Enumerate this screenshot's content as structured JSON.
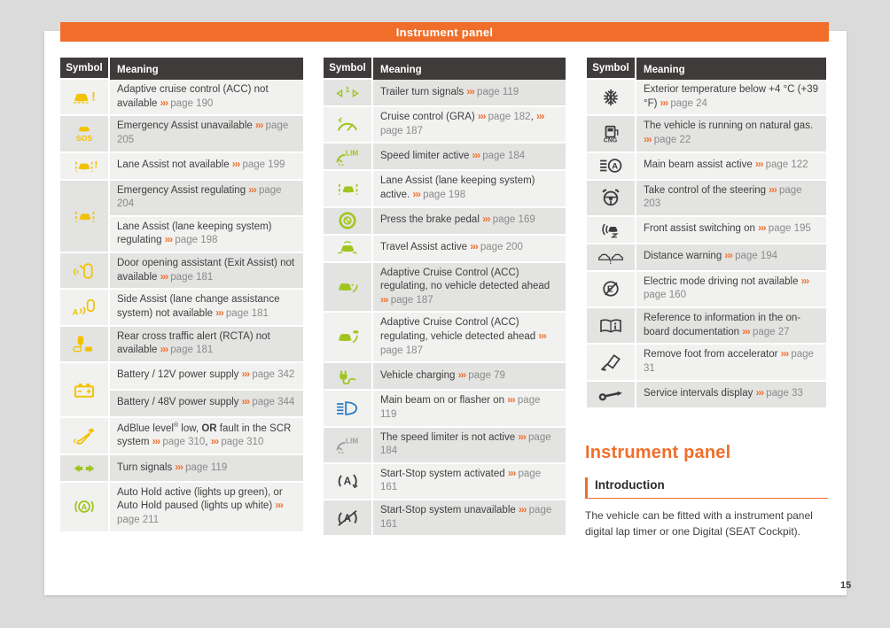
{
  "banner": {
    "title": "Instrument panel"
  },
  "table_header": {
    "symbol": "Symbol",
    "meaning": "Meaning"
  },
  "page": {
    "number": "15"
  },
  "section": {
    "heading": "Instrument panel",
    "subheading": "Introduction",
    "body": "The vehicle can be fitted with a instrument panel digital lap timer or one Digital (SEAT Cockpit)."
  },
  "colors": {
    "accent_orange": "#f06e2a",
    "warning_yellow": "#f2c200",
    "indicator_green": "#a0c51e",
    "main_beam_blue": "#2c7bbf",
    "inactive_gray": "#a0a0a0",
    "icon_dark": "#3c3c3c",
    "header_bg": "#3f3b3a",
    "row_light": "#f1f1f0",
    "row_dark": "#e3e3e2"
  },
  "tables": [
    {
      "groups": [
        {
          "icon": "acc-not-available-icon",
          "color": "warning_yellow",
          "meanings": [
            "Adaptive cruise control (ACC) not available ››› page 190"
          ]
        },
        {
          "icon": "emergency-assist-sos-icon",
          "color": "warning_yellow",
          "meanings": [
            "Emergency Assist unavailable ››› page 205"
          ]
        },
        {
          "icon": "lane-assist-warning-icon",
          "color": "warning_yellow",
          "meanings": [
            "Lane Assist not available ››› page 199"
          ]
        },
        {
          "icon": "lane-assist-icon",
          "color": "warning_yellow",
          "meanings": [
            "Emergency Assist regulating ››› page 204",
            "Lane Assist (lane keeping system) regulating ››› page 198"
          ]
        },
        {
          "icon": "exit-assist-icon",
          "color": "warning_yellow",
          "meanings": [
            "Door opening assistant (Exit Assist) not available ››› page 181"
          ]
        },
        {
          "icon": "side-assist-icon",
          "color": "warning_yellow",
          "meanings": [
            "Side Assist (lane change assistance system) not available ››› page 181"
          ]
        },
        {
          "icon": "rcta-icon",
          "color": "warning_yellow",
          "meanings": [
            "Rear cross traffic alert (RCTA) not available ››› page 181"
          ]
        },
        {
          "icon": "battery-icon",
          "color": "warning_yellow",
          "meanings": [
            "Battery / 12V power supply ››› page 342",
            "Battery / 48V power supply ››› page 344"
          ]
        },
        {
          "icon": "adblue-icon",
          "color": "warning_yellow",
          "meanings": [
            "AdBlue level® low, **OR** fault in the SCR system ››› page 310, ››› page 310"
          ]
        },
        {
          "icon": "turn-signals-icon",
          "color": "indicator_green",
          "meanings": [
            "Turn signals ››› page 119"
          ]
        },
        {
          "icon": "auto-hold-icon",
          "color": "indicator_green",
          "meanings": [
            "Auto Hold active (lights up green), or Auto Hold paused (lights up white) ››› page 211"
          ]
        }
      ]
    },
    {
      "groups": [
        {
          "icon": "trailer-turn-signals-icon",
          "color": "indicator_green",
          "meanings": [
            "Trailer turn signals ››› page 119"
          ]
        },
        {
          "icon": "cruise-control-icon",
          "color": "indicator_green",
          "meanings": [
            "Cruise control (GRA) ››› page 182, ››› page 187"
          ]
        },
        {
          "icon": "speed-limiter-icon",
          "color": "indicator_green",
          "meanings": [
            "Speed limiter active ››› page 184"
          ]
        },
        {
          "icon": "lane-assist-icon",
          "color": "indicator_green",
          "meanings": [
            "Lane Assist (lane keeping system) active. ››› page 198"
          ]
        },
        {
          "icon": "brake-pedal-icon",
          "color": "indicator_green",
          "meanings": [
            "Press the brake pedal ››› page 169"
          ]
        },
        {
          "icon": "travel-assist-icon",
          "color": "indicator_green",
          "meanings": [
            "Travel Assist active ››› page 200"
          ]
        },
        {
          "icon": "acc-regulating-no-vehicle-icon",
          "color": "indicator_green",
          "meanings": [
            "Adaptive Cruise Control (ACC) regulating, no vehicle detected ahead ››› page 187"
          ]
        },
        {
          "icon": "acc-regulating-vehicle-icon",
          "color": "indicator_green",
          "meanings": [
            "Adaptive Cruise Control (ACC) regulating, vehicle detected ahead ››› page 187"
          ]
        },
        {
          "icon": "vehicle-charging-icon",
          "color": "indicator_green",
          "meanings": [
            "Vehicle charging ››› page 79"
          ]
        },
        {
          "icon": "main-beam-icon",
          "color": "main_beam_blue",
          "meanings": [
            "Main beam on or flasher on ››› page 119"
          ]
        },
        {
          "icon": "speed-limiter-inactive-icon",
          "color": "inactive_gray",
          "meanings": [
            "The speed limiter is not active ››› page 184"
          ]
        },
        {
          "icon": "start-stop-icon",
          "color": "icon_dark",
          "meanings": [
            "Start-Stop system activated ››› page 161"
          ]
        },
        {
          "icon": "start-stop-unavailable-icon",
          "color": "icon_dark",
          "meanings": [
            "Start-Stop system unavailable ››› page 161"
          ]
        }
      ]
    },
    {
      "groups": [
        {
          "icon": "snowflake-icon",
          "color": "icon_dark",
          "meanings": [
            "Exterior temperature below +4 °C (+39 °F) ››› page 24"
          ]
        },
        {
          "icon": "cng-icon",
          "color": "icon_dark",
          "meanings": [
            "The vehicle is running on natural gas. ››› page 22"
          ]
        },
        {
          "icon": "main-beam-assist-icon",
          "color": "icon_dark",
          "meanings": [
            "Main beam assist active ››› page 122"
          ]
        },
        {
          "icon": "steering-wheel-hands-icon",
          "color": "icon_dark",
          "meanings": [
            "Take control of the steering ››› page 203"
          ]
        },
        {
          "icon": "front-assist-icon",
          "color": "icon_dark",
          "meanings": [
            "Front assist switching on ››› page 195"
          ]
        },
        {
          "icon": "distance-warning-icon",
          "color": "icon_dark",
          "meanings": [
            "Distance warning ››› page 194"
          ]
        },
        {
          "icon": "e-mode-unavailable-icon",
          "color": "icon_dark",
          "meanings": [
            "Electric mode driving not available ››› page 160"
          ]
        },
        {
          "icon": "book-info-icon",
          "color": "icon_dark",
          "meanings": [
            "Reference to information in the on-board documentation ››› page 27"
          ]
        },
        {
          "icon": "accelerator-foot-icon",
          "color": "icon_dark",
          "meanings": [
            "Remove foot from accelerator ››› page 31"
          ]
        },
        {
          "icon": "service-wrench-icon",
          "color": "icon_dark",
          "meanings": [
            "Service intervals display ››› page 33"
          ]
        }
      ]
    }
  ]
}
